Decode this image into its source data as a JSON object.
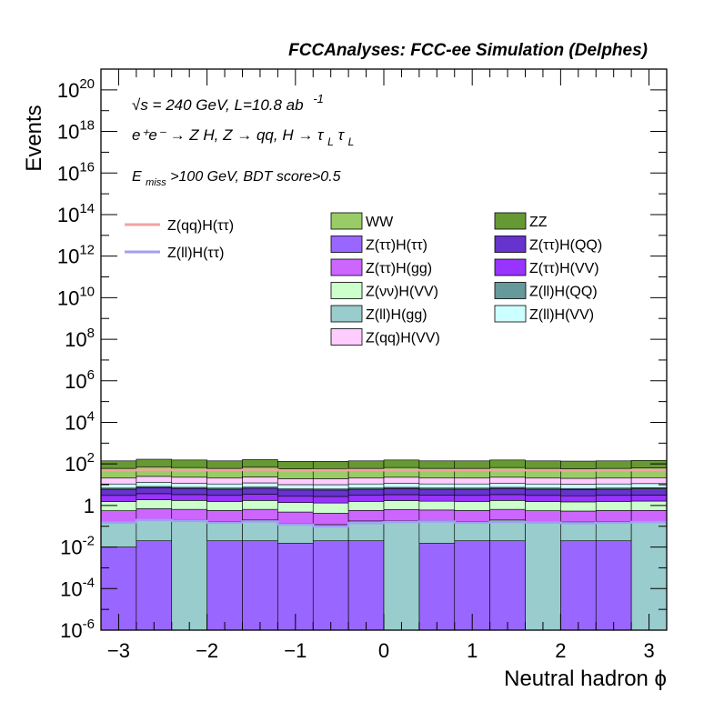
{
  "chart_data": {
    "type": "bar",
    "title": "FCCAnalyses: FCC-ee Simulation (Delphes)",
    "ylabel": "Events",
    "xlabel": "Neutral hadron ϕ",
    "y_scale": "log",
    "xlim": [
      -3.2,
      3.2
    ],
    "ylim": [
      1e-06,
      1e+21
    ],
    "x_ticks": [
      "−3",
      "−2",
      "−1",
      "0",
      "1",
      "2",
      "3"
    ],
    "y_ticks": [
      {
        "base": "10",
        "exp": "20"
      },
      {
        "base": "10",
        "exp": "18"
      },
      {
        "base": "10",
        "exp": "16"
      },
      {
        "base": "10",
        "exp": "14"
      },
      {
        "base": "10",
        "exp": "12"
      },
      {
        "base": "10",
        "exp": "10"
      },
      {
        "base": "10",
        "exp": "8"
      },
      {
        "base": "10",
        "exp": "6"
      },
      {
        "base": "10",
        "exp": "4"
      },
      {
        "base": "10",
        "exp": "2"
      },
      {
        "base": "1",
        "exp": ""
      },
      {
        "base": "10",
        "exp": "-2"
      },
      {
        "base": "10",
        "exp": "-4"
      },
      {
        "base": "10",
        "exp": "-6"
      }
    ],
    "annotations": {
      "line1": "√s = 240 GeV, L=10.8 ab",
      "line1_exp": "-1",
      "line2": "e⁺e⁻ → Z H, Z  → qq, H  → τ",
      "line2_sub1": "L",
      "line2_tau": "τ",
      "line2_sub2": "L",
      "line3_e": "E",
      "line3_sub": "miss",
      "line3_rest": ">100 GeV, BDT score>0.5"
    },
    "signal_legend": [
      {
        "name": "Z(qq)H(ττ)",
        "color": "#f4a3a3"
      },
      {
        "name": "Z(ll)H(ττ)",
        "color": "#a0a0f4"
      }
    ],
    "stack_legend": [
      {
        "name": "WW",
        "color": "#99cc66"
      },
      {
        "name": "ZZ",
        "color": "#669933"
      },
      {
        "name": "Z(ττ)H(ττ)",
        "color": "#9966ff"
      },
      {
        "name": "Z(ττ)H(QQ)",
        "color": "#6633cc"
      },
      {
        "name": "Z(ττ)H(gg)",
        "color": "#cc66ff"
      },
      {
        "name": "Z(ττ)H(VV)",
        "color": "#9933ff"
      },
      {
        "name": "Z(νν)H(VV)",
        "color": "#ccffcc"
      },
      {
        "name": "Z(ll)H(QQ)",
        "color": "#669999"
      },
      {
        "name": "Z(ll)H(gg)",
        "color": "#99cccc"
      },
      {
        "name": "Z(ll)H(VV)",
        "color": "#ccffff"
      },
      {
        "name": "Z(qq)H(VV)",
        "color": "#ffccff"
      }
    ],
    "bin_edges": [
      -3.2,
      -2.8,
      -2.4,
      -2.0,
      -1.6,
      -1.2,
      -0.8,
      -0.4,
      0.0,
      0.4,
      0.8,
      1.2,
      1.6,
      2.0,
      2.4,
      2.8,
      3.2
    ],
    "stack_bottom_to_top": [
      {
        "name": "Z(ττ)H(ττ)",
        "color": "#9966ff",
        "values": [
          0.01,
          0.02,
          1e-06,
          0.02,
          0.02,
          0.015,
          0.02,
          0.02,
          1e-06,
          0.015,
          0.02,
          0.02,
          1e-06,
          0.02,
          0.02,
          1e-06
        ]
      },
      {
        "name": "Z(ll)H(gg)",
        "color": "#99cccc",
        "values": [
          0.15,
          0.18,
          0.2,
          0.15,
          0.18,
          0.12,
          0.1,
          0.16,
          0.18,
          0.17,
          0.15,
          0.18,
          0.16,
          0.14,
          0.15,
          0.16
        ]
      },
      {
        "name": "Z(ττ)H(gg)",
        "color": "#cc66ff",
        "values": [
          0.4,
          0.5,
          0.45,
          0.4,
          0.45,
          0.35,
          0.3,
          0.4,
          0.45,
          0.42,
          0.4,
          0.45,
          0.4,
          0.38,
          0.4,
          0.42
        ]
      },
      {
        "name": "Z(νν)H(VV)",
        "color": "#ccffcc",
        "values": [
          1.0,
          1.2,
          1.1,
          1.0,
          1.1,
          0.9,
          0.9,
          1.0,
          1.1,
          1.0,
          1.0,
          1.1,
          1.0,
          0.95,
          1.0,
          1.05
        ]
      },
      {
        "name": "Z(ττ)H(VV)",
        "color": "#9933ff",
        "values": [
          1.5,
          1.8,
          1.6,
          1.5,
          1.7,
          1.4,
          1.4,
          1.5,
          1.6,
          1.5,
          1.5,
          1.6,
          1.5,
          1.45,
          1.5,
          1.55
        ]
      },
      {
        "name": "Z(ττ)H(QQ)",
        "color": "#6633cc",
        "values": [
          3.0,
          3.5,
          3.2,
          3.0,
          3.3,
          2.8,
          2.8,
          3.0,
          3.2,
          3.0,
          3.0,
          3.2,
          3.0,
          2.9,
          3.0,
          3.1
        ]
      },
      {
        "name": "Z(ll)H(QQ)",
        "color": "#669999",
        "values": [
          0.8,
          1.0,
          0.9,
          0.8,
          0.9,
          0.7,
          0.7,
          0.8,
          0.9,
          0.8,
          0.8,
          0.9,
          0.8,
          0.75,
          0.8,
          0.85
        ]
      },
      {
        "name": "Z(ll)H(VV)",
        "color": "#ccffff",
        "values": [
          4,
          5,
          4.5,
          4,
          4.6,
          3.8,
          3.8,
          4,
          4.5,
          4,
          4,
          4.5,
          4,
          3.9,
          4,
          4.2
        ]
      },
      {
        "name": "Z(qq)H(VV)",
        "color": "#ffccff",
        "values": [
          10,
          12,
          11,
          10,
          11.5,
          9.5,
          9.5,
          10,
          11,
          10,
          10,
          11,
          10,
          9.8,
          10,
          10.5
        ]
      },
      {
        "name": "WW",
        "color": "#99cc66",
        "values": [
          40,
          48,
          44,
          40,
          46,
          38,
          38,
          40,
          44,
          40,
          40,
          44,
          40,
          39,
          40,
          42
        ]
      },
      {
        "name": "ZZ",
        "color": "#669933",
        "values": [
          80,
          95,
          88,
          80,
          92,
          76,
          76,
          80,
          88,
          80,
          80,
          88,
          80,
          78,
          80,
          84
        ]
      }
    ],
    "signal_lines": [
      {
        "name": "Z(qq)H(ττ)",
        "color": "#f4a3a3",
        "values": [
          50,
          52,
          50,
          51,
          52,
          49,
          50,
          51,
          50,
          50,
          51,
          50,
          50,
          49,
          50,
          51
        ]
      },
      {
        "name": "Z(ll)H(ττ)",
        "color": "#a0a0f4",
        "values": [
          0.15,
          0.2,
          0.18,
          0.15,
          0.17,
          0.12,
          0.1,
          0.14,
          0.16,
          0.17,
          0.15,
          0.16,
          0.15,
          0.14,
          0.15,
          0.16
        ]
      }
    ]
  }
}
